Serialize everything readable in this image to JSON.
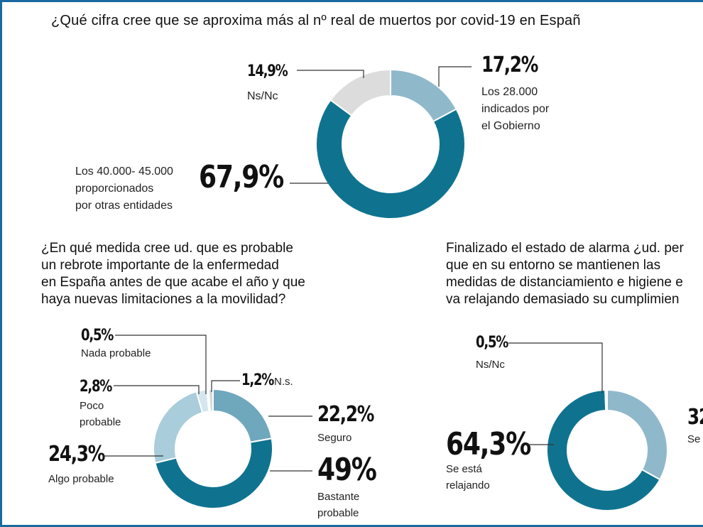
{
  "chart_data": [
    {
      "type": "pie",
      "title": "¿Qué cifra cree que se aproxima más al  nº real de muertos por covid-19 en Españ",
      "slices": [
        {
          "pct_label": "17,2%",
          "label": "Los 28.000\nindicados por\nel Gobierno",
          "value": 17.2,
          "color": "#8fb9cb"
        },
        {
          "pct_label": "67,9%",
          "label": "Los 40.000- 45.000\nproporcionados\npor otras entidades",
          "value": 67.9,
          "color": "#0f7390"
        },
        {
          "pct_label": "14,9%",
          "label": "Ns/Nc",
          "value": 14.9,
          "color": "#dcdcdc"
        }
      ]
    },
    {
      "type": "pie",
      "title": "¿En qué medida cree ud. que es probable\nun rebrote importante de la enfermedad\nen España antes de que acabe el año y que\nhaya nuevas limitaciones a la movilidad?",
      "slices": [
        {
          "pct_label": "22,2%",
          "label": "Seguro",
          "value": 22.2,
          "color": "#6fa7bd"
        },
        {
          "pct_label": "49%",
          "label": "Bastante\nprobable",
          "value": 49.0,
          "color": "#0f7390"
        },
        {
          "pct_label": "24,3%",
          "label": "Algo probable",
          "value": 24.3,
          "color": "#a9cdda"
        },
        {
          "pct_label": "2,8%",
          "label": "Poco\nprobable",
          "value": 2.8,
          "color": "#d4e6ee"
        },
        {
          "pct_label": "0,5%",
          "label": "Nada probable",
          "value": 0.5,
          "color": "#ebebeb"
        },
        {
          "pct_label": "1,2%",
          "label": "N.s.",
          "value": 1.2,
          "color": "#d8d8d8"
        }
      ]
    },
    {
      "type": "pie",
      "title": "Finalizado el estado de alarma ¿ud. per\nque en su entorno se mantienen las\nmedidas de distanciamiento e higiene e\nva relajando demasiado su cumplimien",
      "slices": [
        {
          "pct_label": "32",
          "label": "Se",
          "value": 32.0,
          "color": "#8fb9cb"
        },
        {
          "pct_label": "64,3%",
          "label": "Se está\nrelajando",
          "value": 64.3,
          "color": "#0f7390"
        },
        {
          "pct_label": "0,5%",
          "label": "Ns/Nc",
          "value": 0.5,
          "color": "#dcdcdc"
        }
      ]
    }
  ]
}
